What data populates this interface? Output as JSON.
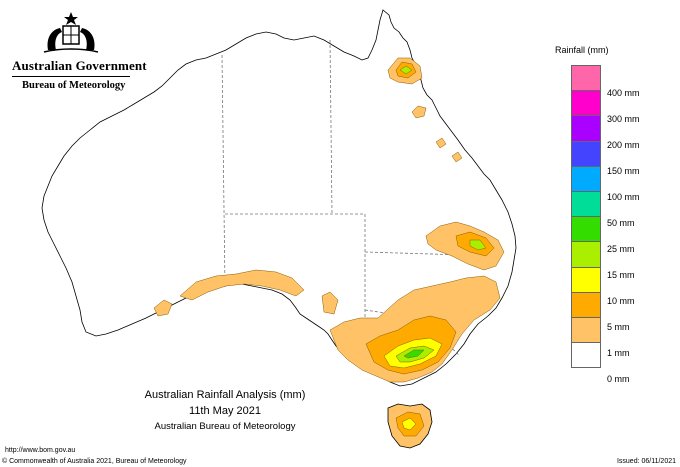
{
  "header": {
    "government": "Australian Government",
    "bureau": "Bureau of Meteorology"
  },
  "legend": {
    "title": "Rainfall (mm)",
    "items": [
      {
        "label": "",
        "color": "#ff66aa"
      },
      {
        "label": "400 mm",
        "color": "#ff00cc"
      },
      {
        "label": "300 mm",
        "color": "#aa00ff"
      },
      {
        "label": "200 mm",
        "color": "#4444ff"
      },
      {
        "label": "150 mm",
        "color": "#00aaff"
      },
      {
        "label": "100 mm",
        "color": "#00dd99"
      },
      {
        "label": "50 mm",
        "color": "#33dd00"
      },
      {
        "label": "25 mm",
        "color": "#aaee00"
      },
      {
        "label": "15 mm",
        "color": "#ffff00"
      },
      {
        "label": "10 mm",
        "color": "#ffaa00"
      },
      {
        "label": "5 mm",
        "color": "#ffc266"
      },
      {
        "label": "1 mm",
        "color": "#ffffff"
      },
      {
        "label": "0 mm",
        "color": ""
      }
    ]
  },
  "map": {
    "title": "Australian Rainfall Analysis (mm)",
    "date": "11th May 2021",
    "source": "Australian Bureau of Meteorology"
  },
  "footer": {
    "url": "http://www.bom.gov.au",
    "copyright": "© Commonwealth of Australia 2021, Bureau of Meteorology",
    "issued": "Issued: 06/11/2021"
  }
}
